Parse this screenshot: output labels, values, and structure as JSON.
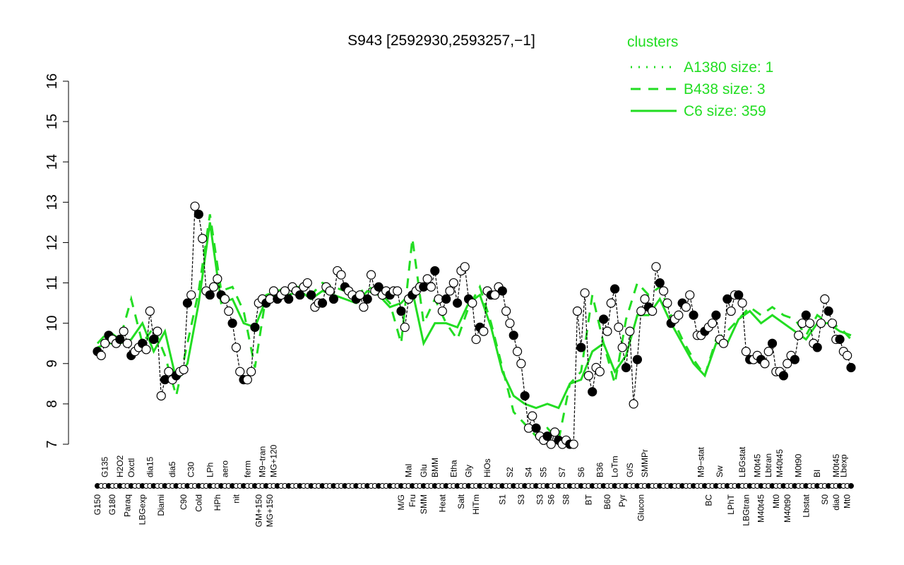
{
  "chart_data": {
    "type": "line",
    "title": "S943 [2592930,2593257,−1]",
    "xlabel": "",
    "ylabel": "",
    "ylim": [
      7,
      16
    ],
    "yticks": [
      7,
      8,
      9,
      10,
      11,
      12,
      13,
      14,
      15,
      16
    ],
    "grid": false,
    "legend": {
      "title": "clusters",
      "placement": "top-right",
      "entries": [
        {
          "name": "A1380 size: 1",
          "style": "dotted"
        },
        {
          "name": "B438 size: 3",
          "style": "dashed"
        },
        {
          "name": "C6 size: 359",
          "style": "solid"
        }
      ]
    },
    "colors": {
      "series": "#000000",
      "cluster": "#22dd22"
    },
    "values": [
      9.3,
      9.2,
      9.5,
      9.7,
      9.6,
      9.5,
      9.6,
      9.8,
      9.5,
      9.2,
      9.3,
      9.4,
      9.5,
      9.35,
      10.3,
      9.6,
      9.8,
      8.2,
      8.6,
      8.8,
      8.6,
      8.7,
      8.8,
      8.85,
      10.5,
      10.7,
      12.9,
      12.7,
      12.1,
      10.8,
      10.7,
      10.9,
      11.1,
      10.7,
      10.6,
      10.3,
      10.0,
      9.4,
      8.8,
      8.6,
      8.6,
      8.8,
      9.9,
      10.5,
      10.6,
      10.5,
      10.6,
      10.8,
      10.6,
      10.7,
      10.8,
      10.6,
      10.9,
      10.8,
      10.7,
      10.9,
      11.0,
      10.7,
      10.4,
      10.5,
      10.5,
      10.9,
      10.8,
      10.6,
      11.3,
      11.2,
      10.9,
      10.8,
      10.7,
      10.6,
      10.7,
      10.4,
      10.6,
      11.2,
      10.8,
      10.9,
      10.7,
      10.8,
      10.7,
      10.8,
      10.8,
      10.3,
      9.9,
      10.6,
      10.7,
      10.8,
      10.9,
      10.9,
      11.1,
      10.9,
      11.3,
      10.6,
      10.3,
      10.6,
      10.8,
      11.0,
      10.5,
      11.3,
      11.4,
      10.6,
      10.5,
      9.6,
      9.9,
      9.8,
      10.8,
      10.7,
      10.7,
      10.9,
      10.8,
      10.3,
      10.0,
      9.7,
      9.3,
      9.0,
      8.2,
      7.4,
      7.7,
      7.4,
      7.2,
      7.1,
      7.2,
      7.0,
      7.3,
      7.1,
      7.0,
      7.1,
      7.0,
      7.0,
      10.3,
      9.4,
      10.75,
      8.7,
      8.3,
      8.9,
      8.8,
      10.1,
      9.8,
      10.5,
      10.85,
      9.9,
      9.4,
      8.9,
      9.8,
      8.0,
      9.1,
      10.3,
      10.6,
      10.4,
      10.3,
      11.4,
      11.0,
      10.8,
      10.5,
      10.0,
      10.1,
      10.2,
      10.5,
      10.4,
      10.7,
      10.2,
      9.7,
      9.7,
      9.8,
      9.9,
      10.0,
      10.2,
      9.6,
      9.5,
      10.6,
      10.3,
      10.7,
      10.7,
      10.5,
      9.3,
      9.1,
      9.1,
      9.2,
      9.1,
      9.0,
      9.3,
      9.5,
      8.8,
      8.8,
      8.7,
      9.0,
      9.2,
      9.1,
      9.7,
      10.0,
      10.2,
      10.0,
      9.5,
      9.4,
      10.0,
      10.6,
      10.3,
      10.0,
      9.6,
      9.6,
      9.3,
      9.2,
      8.9
    ],
    "clusters": {
      "C6": [
        9.4,
        9.5,
        9.5,
        9.6,
        10.0,
        9.3,
        9.8,
        8.6,
        9.0,
        10.5,
        12.5,
        10.5,
        10.6,
        10.0,
        9.9,
        10.6,
        10.7,
        10.7,
        10.8,
        10.6,
        10.8,
        10.7,
        10.6,
        10.5,
        10.8,
        10.7,
        10.4,
        10.5,
        10.8,
        9.5,
        10.0,
        10.0,
        9.9,
        10.5,
        10.7,
        9.9,
        8.8,
        8.2,
        8.0,
        7.9,
        8.0,
        7.9,
        8.5,
        8.6,
        9.3,
        9.5,
        8.8,
        9.2,
        10.2,
        10.2,
        10.6,
        10.0,
        9.5,
        9.0,
        8.7,
        9.5,
        9.5,
        10.1,
        10.3,
        10.0,
        10.2,
        10.0,
        9.8,
        9.6,
        10.0,
        10.0,
        9.8,
        9.7
      ],
      "B438": [
        9.5,
        9.8,
        9.6,
        10.6,
        9.5,
        9.9,
        9.2,
        8.2,
        9.5,
        10.8,
        12.7,
        10.8,
        10.9,
        10.3,
        8.9,
        10.7,
        10.8,
        10.9,
        10.9,
        10.7,
        11.0,
        10.9,
        10.8,
        10.7,
        10.9,
        10.8,
        10.5,
        9.5,
        12.1,
        10.0,
        10.6,
        10.0,
        9.6,
        10.4,
        10.9,
        10.0,
        8.9,
        7.8,
        7.5,
        7.2,
        7.4,
        7.1,
        8.5,
        8.8,
        10.7,
        9.5,
        8.5,
        10.1,
        11.0,
        10.7,
        10.9,
        10.2,
        9.6,
        9.1,
        8.7,
        9.6,
        9.8,
        10.1,
        10.4,
        10.2,
        10.4,
        10.2,
        10.1,
        9.7,
        10.2,
        10.0,
        9.9,
        9.6
      ]
    },
    "labels_bottom": [
      {
        "text": "G150",
        "at": 0
      },
      {
        "text": "G180",
        "at": 4
      },
      {
        "text": "Paraq",
        "at": 8
      },
      {
        "text": "LBGexp",
        "at": 12
      },
      {
        "text": "Diami",
        "at": 17
      },
      {
        "text": "C90",
        "at": 23
      },
      {
        "text": "Cold",
        "at": 27
      },
      {
        "text": "HPh",
        "at": 32
      },
      {
        "text": "nit",
        "at": 37
      },
      {
        "text": "GM+150",
        "at": 43
      },
      {
        "text": "MG+150",
        "at": 46
      },
      {
        "text": "M/G",
        "at": 81
      },
      {
        "text": "Fru",
        "at": 84
      },
      {
        "text": "SMM",
        "at": 87
      },
      {
        "text": "Heat",
        "at": 92
      },
      {
        "text": "Salt",
        "at": 97
      },
      {
        "text": "HiTm",
        "at": 101
      },
      {
        "text": "S1",
        "at": 108
      },
      {
        "text": "S3",
        "at": 113
      },
      {
        "text": "S3",
        "at": 118
      },
      {
        "text": "S6",
        "at": 121
      },
      {
        "text": "S8",
        "at": 125
      },
      {
        "text": "BT",
        "at": 131
      },
      {
        "text": "B60",
        "at": 136
      },
      {
        "text": "Pyr",
        "at": 140
      },
      {
        "text": "Glucon",
        "at": 145
      },
      {
        "text": "BC",
        "at": 163
      },
      {
        "text": "LPhT",
        "at": 169
      },
      {
        "text": "LBGtran",
        "at": 173
      },
      {
        "text": "M40t45",
        "at": 177
      },
      {
        "text": "Mt0",
        "at": 181
      },
      {
        "text": "M40t90",
        "at": 184
      },
      {
        "text": "Lbstat",
        "at": 189
      },
      {
        "text": "S0",
        "at": 194
      },
      {
        "text": "dia0",
        "at": 197
      },
      {
        "text": "Mt0",
        "at": 200
      }
    ],
    "labels_top": [
      {
        "text": "G135",
        "at": 2
      },
      {
        "text": "H2O2",
        "at": 6
      },
      {
        "text": "Oxctl",
        "at": 9
      },
      {
        "text": "dia15",
        "at": 14
      },
      {
        "text": "dia5",
        "at": 20
      },
      {
        "text": "C30",
        "at": 25
      },
      {
        "text": "LPh",
        "at": 30
      },
      {
        "text": "aero",
        "at": 34
      },
      {
        "text": "ferm",
        "at": 40
      },
      {
        "text": "M9−tran",
        "at": 44
      },
      {
        "text": "MG+120",
        "at": 47
      },
      {
        "text": "Mal",
        "at": 83
      },
      {
        "text": "Glu",
        "at": 87
      },
      {
        "text": "BMM",
        "at": 90
      },
      {
        "text": "Etha",
        "at": 95
      },
      {
        "text": "Gly",
        "at": 99
      },
      {
        "text": "HiOs",
        "at": 104
      },
      {
        "text": "S2",
        "at": 110
      },
      {
        "text": "S4",
        "at": 115
      },
      {
        "text": "S5",
        "at": 119
      },
      {
        "text": "S7",
        "at": 124
      },
      {
        "text": "S6",
        "at": 129
      },
      {
        "text": "B36",
        "at": 134
      },
      {
        "text": "LoTm",
        "at": 138
      },
      {
        "text": "G/S",
        "at": 142
      },
      {
        "text": "SMMPr",
        "at": 146
      },
      {
        "text": "M9−stat",
        "at": 161
      },
      {
        "text": "Sw",
        "at": 166
      },
      {
        "text": "LBGstat",
        "at": 172
      },
      {
        "text": "M0t45",
        "at": 176
      },
      {
        "text": "Lbtran",
        "at": 179
      },
      {
        "text": "M40t45",
        "at": 182
      },
      {
        "text": "M0t90",
        "at": 187
      },
      {
        "text": "BI",
        "at": 192
      },
      {
        "text": "M0t45",
        "at": 197
      },
      {
        "text": "Lbexp",
        "at": 199
      }
    ]
  }
}
